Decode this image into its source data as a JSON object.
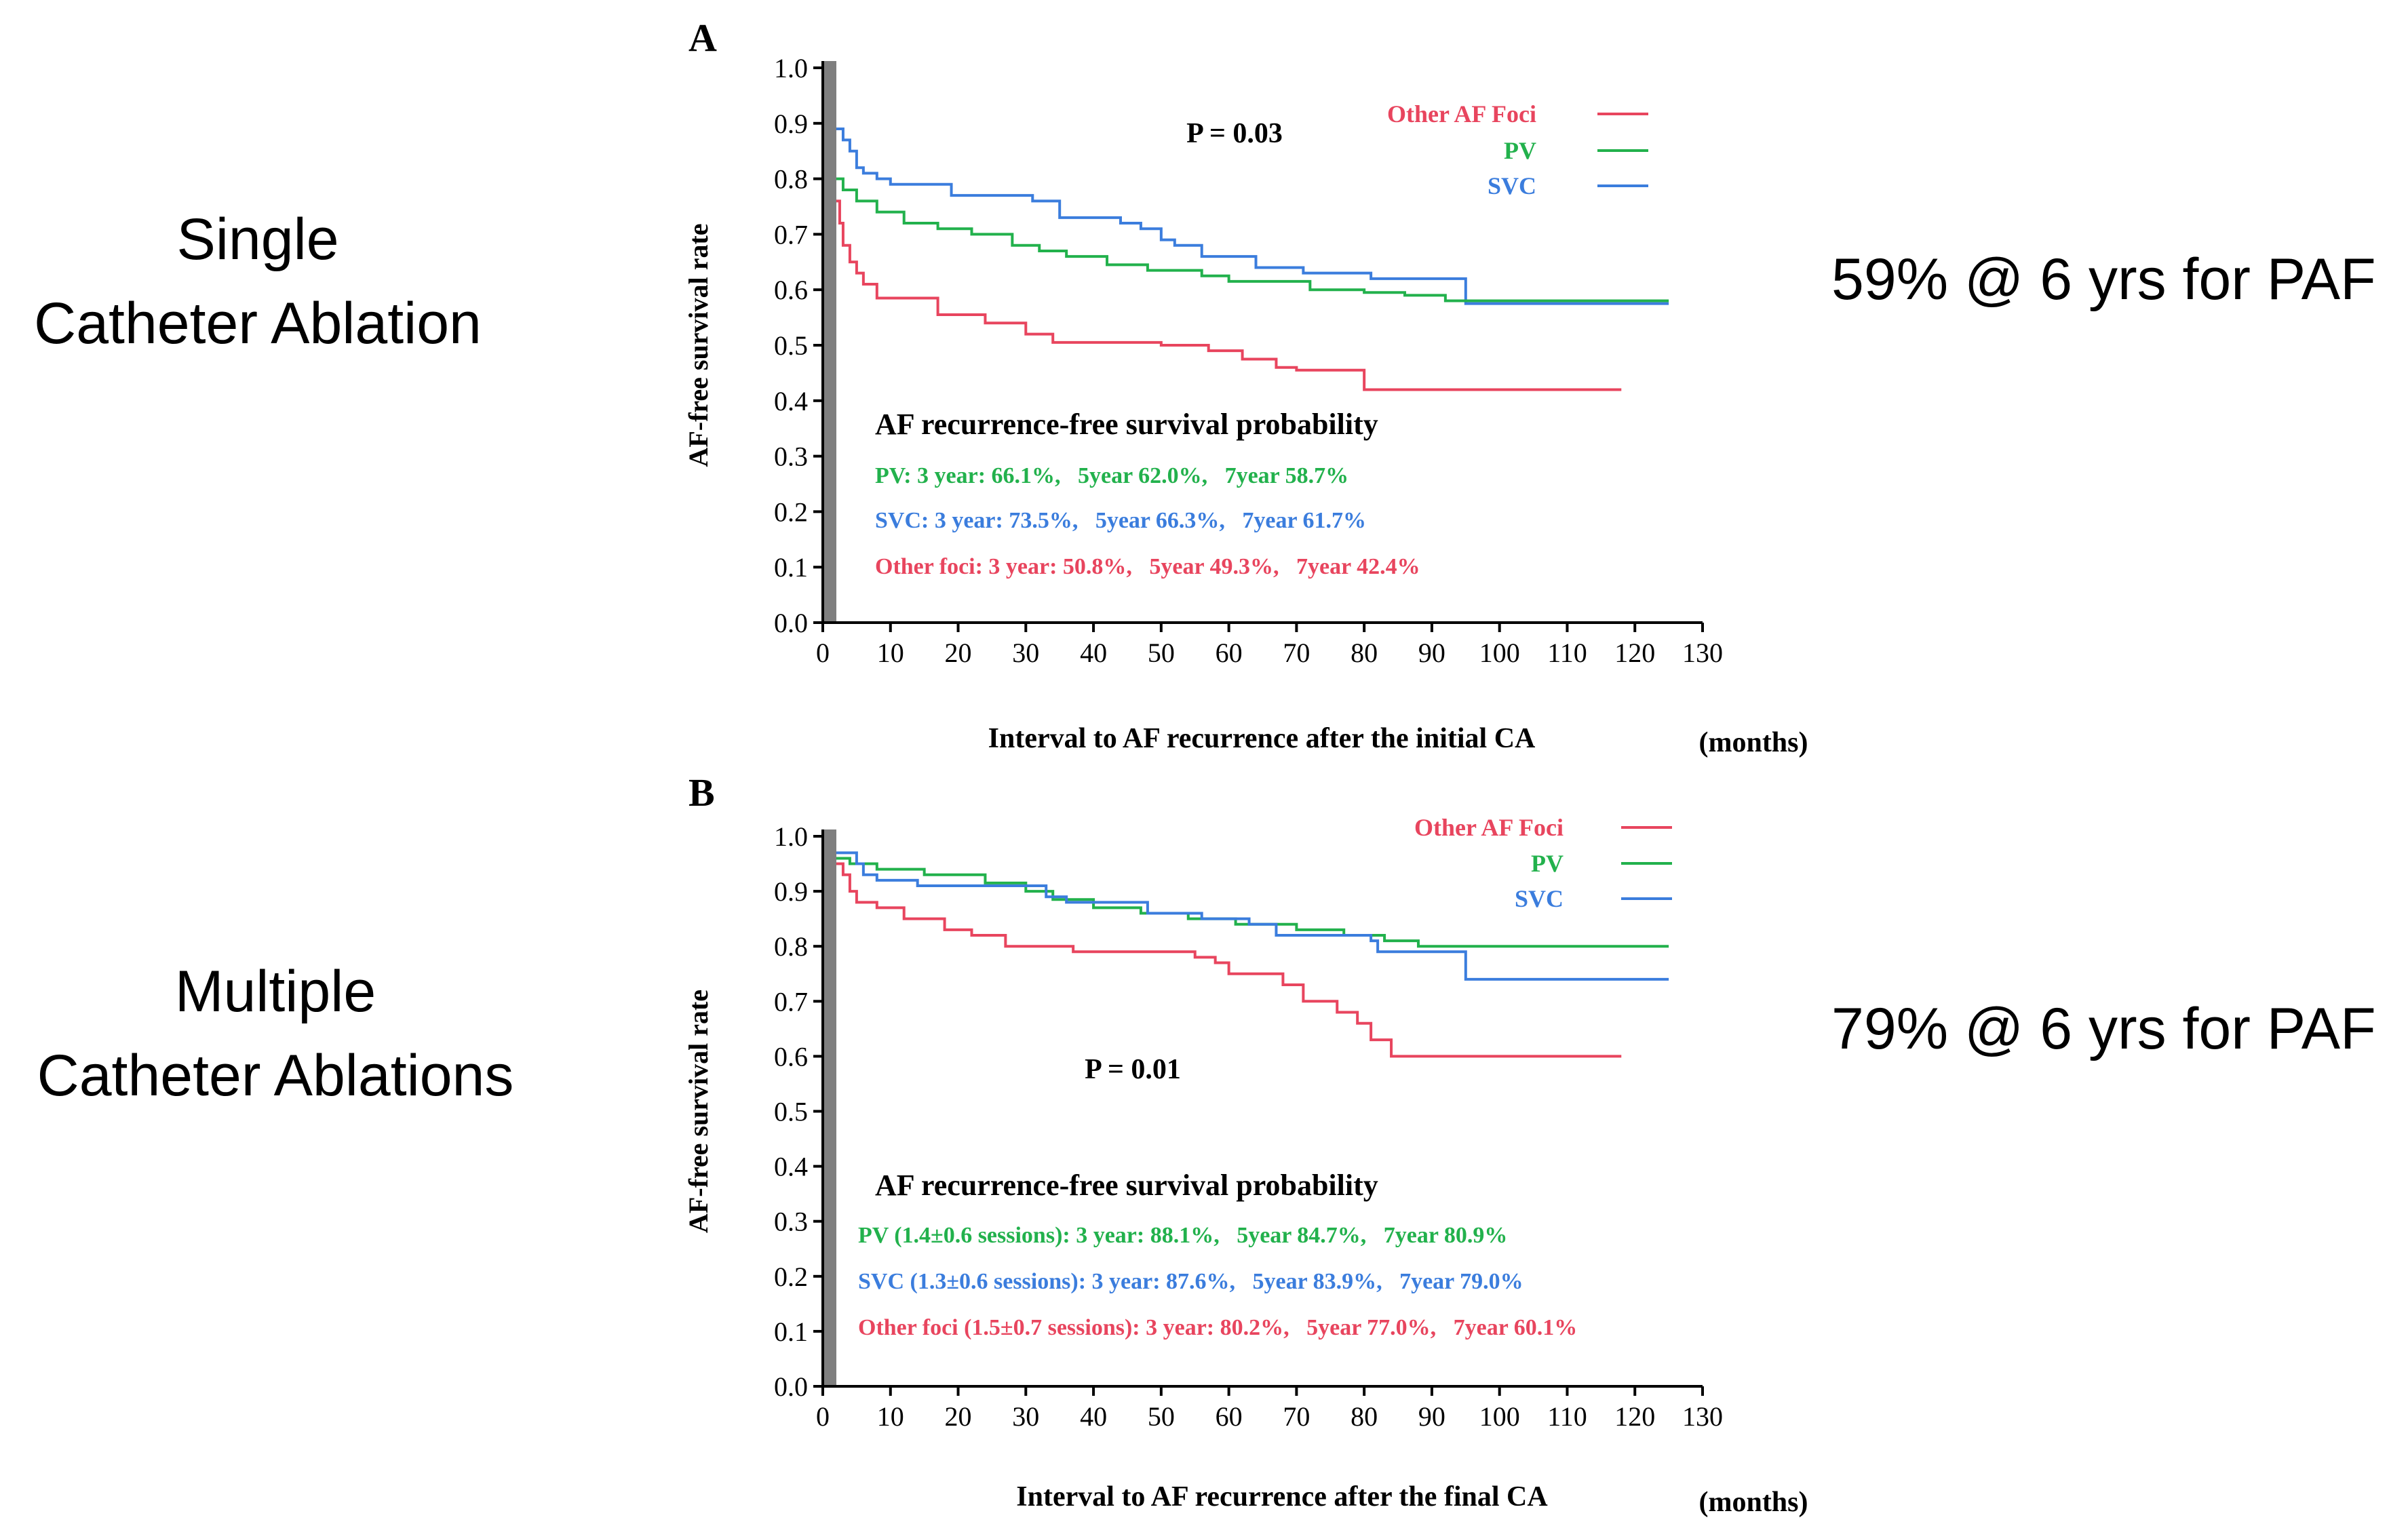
{
  "side_labels": {
    "single": [
      "Single",
      "Catheter Ablation"
    ],
    "multiple": [
      "Multiple",
      "Catheter Ablations"
    ]
  },
  "results": {
    "single": "59% @ 6 yrs for PAF",
    "multiple": "79% @ 6 yrs for PAF"
  },
  "colors": {
    "other": "#e8455e",
    "pv": "#22b14c",
    "svc": "#3b7ddd",
    "axis": "#000000",
    "bar": "#7f7f7f"
  },
  "chart_data": [
    {
      "type": "line",
      "panel_label": "A",
      "ylabel": "AF-free survival rate",
      "xlabel": "Interval to AF recurrence after the initial CA",
      "xunit": "(months)",
      "xlim": [
        0,
        130
      ],
      "ylim": [
        0.0,
        1.0
      ],
      "x_ticks": [
        0,
        10,
        20,
        30,
        40,
        50,
        60,
        70,
        80,
        90,
        100,
        110,
        120,
        130
      ],
      "y_ticks": [
        "0.0",
        "0.1",
        "0.2",
        "0.3",
        "0.4",
        "0.5",
        "0.6",
        "0.7",
        "0.8",
        "0.9",
        "1.0"
      ],
      "p_value": "P = 0.03",
      "legend": [
        "Other AF Foci",
        "PV",
        "SVC"
      ],
      "summary_title": "AF recurrence-free survival probability",
      "summary": [
        {
          "key": "pv",
          "text": "PV: 3 year: 66.1%,   5year 62.0%,   7year 58.7%"
        },
        {
          "key": "svc",
          "text": "SVC: 3 year: 73.5%,   5year 66.3%,   7year 61.7%"
        },
        {
          "key": "other",
          "text": "Other foci: 3 year: 50.8%,   5year 49.3%,   7year 42.4%"
        }
      ],
      "series": [
        {
          "key": "svc",
          "name": "SVC",
          "points": [
            [
              2,
              0.89
            ],
            [
              3,
              0.87
            ],
            [
              4,
              0.85
            ],
            [
              5,
              0.82
            ],
            [
              6,
              0.81
            ],
            [
              8,
              0.8
            ],
            [
              10,
              0.79
            ],
            [
              19,
              0.77
            ],
            [
              31,
              0.76
            ],
            [
              35,
              0.73
            ],
            [
              44,
              0.72
            ],
            [
              47,
              0.71
            ],
            [
              50,
              0.69
            ],
            [
              52,
              0.68
            ],
            [
              56,
              0.66
            ],
            [
              64,
              0.64
            ],
            [
              71,
              0.63
            ],
            [
              81,
              0.62
            ],
            [
              95,
              0.575
            ],
            [
              125,
              0.575
            ]
          ]
        },
        {
          "key": "pv",
          "name": "PV",
          "points": [
            [
              2,
              0.8
            ],
            [
              3,
              0.78
            ],
            [
              5,
              0.76
            ],
            [
              8,
              0.74
            ],
            [
              12,
              0.72
            ],
            [
              17,
              0.71
            ],
            [
              22,
              0.7
            ],
            [
              28,
              0.68
            ],
            [
              32,
              0.67
            ],
            [
              36,
              0.66
            ],
            [
              42,
              0.645
            ],
            [
              48,
              0.635
            ],
            [
              56,
              0.625
            ],
            [
              60,
              0.615
            ],
            [
              72,
              0.6
            ],
            [
              80,
              0.595
            ],
            [
              86,
              0.59
            ],
            [
              92,
              0.58
            ],
            [
              125,
              0.58
            ]
          ]
        },
        {
          "key": "other",
          "name": "Other AF Foci",
          "points": [
            [
              2,
              0.76
            ],
            [
              2.5,
              0.72
            ],
            [
              3,
              0.68
            ],
            [
              4,
              0.65
            ],
            [
              5,
              0.63
            ],
            [
              6,
              0.61
            ],
            [
              8,
              0.585
            ],
            [
              17,
              0.555
            ],
            [
              24,
              0.54
            ],
            [
              30,
              0.52
            ],
            [
              34,
              0.505
            ],
            [
              50,
              0.5
            ],
            [
              57,
              0.49
            ],
            [
              62,
              0.475
            ],
            [
              67,
              0.46
            ],
            [
              70,
              0.455
            ],
            [
              80,
              0.42
            ],
            [
              118,
              0.42
            ]
          ]
        }
      ]
    },
    {
      "type": "line",
      "panel_label": "B",
      "ylabel": "AF-free survival rate",
      "xlabel": "Interval to AF recurrence after the final CA",
      "xunit": "(months)",
      "xlim": [
        0,
        130
      ],
      "ylim": [
        0.0,
        1.0
      ],
      "x_ticks": [
        0,
        10,
        20,
        30,
        40,
        50,
        60,
        70,
        80,
        90,
        100,
        110,
        120,
        130
      ],
      "y_ticks": [
        "0.0",
        "0.1",
        "0.2",
        "0.3",
        "0.4",
        "0.5",
        "0.6",
        "0.7",
        "0.8",
        "0.9",
        "1.0"
      ],
      "p_value": "P = 0.01",
      "legend": [
        "Other AF Foci",
        "PV",
        "SVC"
      ],
      "summary_title": "AF recurrence-free survival probability",
      "summary": [
        {
          "key": "pv",
          "text": "PV (1.4±0.6 sessions): 3 year: 88.1%,   5year 84.7%,   7year 80.9%"
        },
        {
          "key": "svc",
          "text": "SVC (1.3±0.6 sessions): 3 year: 87.6%,   5year 83.9%,   7year 79.0%"
        },
        {
          "key": "other",
          "text": "Other foci (1.5±0.7 sessions): 3 year: 80.2%,   5year 77.0%,   7year 60.1%"
        }
      ],
      "series": [
        {
          "key": "pv",
          "name": "PV",
          "points": [
            [
              2,
              0.96
            ],
            [
              4,
              0.95
            ],
            [
              8,
              0.94
            ],
            [
              15,
              0.93
            ],
            [
              24,
              0.915
            ],
            [
              30,
              0.9
            ],
            [
              34,
              0.885
            ],
            [
              40,
              0.87
            ],
            [
              47,
              0.86
            ],
            [
              54,
              0.85
            ],
            [
              61,
              0.84
            ],
            [
              70,
              0.83
            ],
            [
              77,
              0.82
            ],
            [
              83,
              0.81
            ],
            [
              88,
              0.8
            ],
            [
              125,
              0.8
            ]
          ]
        },
        {
          "key": "svc",
          "name": "SVC",
          "points": [
            [
              2,
              0.97
            ],
            [
              5,
              0.95
            ],
            [
              6,
              0.93
            ],
            [
              8,
              0.92
            ],
            [
              14,
              0.91
            ],
            [
              28,
              0.91
            ],
            [
              33,
              0.89
            ],
            [
              36,
              0.88
            ],
            [
              48,
              0.86
            ],
            [
              56,
              0.85
            ],
            [
              63,
              0.84
            ],
            [
              67,
              0.82
            ],
            [
              81,
              0.81
            ],
            [
              82,
              0.79
            ],
            [
              94,
              0.79
            ],
            [
              95,
              0.74
            ],
            [
              125,
              0.74
            ]
          ]
        },
        {
          "key": "other",
          "name": "Other AF Foci",
          "points": [
            [
              2,
              0.95
            ],
            [
              3,
              0.93
            ],
            [
              4,
              0.9
            ],
            [
              5,
              0.88
            ],
            [
              8,
              0.87
            ],
            [
              12,
              0.85
            ],
            [
              18,
              0.83
            ],
            [
              22,
              0.82
            ],
            [
              27,
              0.8
            ],
            [
              37,
              0.79
            ],
            [
              55,
              0.78
            ],
            [
              58,
              0.77
            ],
            [
              60,
              0.75
            ],
            [
              68,
              0.73
            ],
            [
              71,
              0.7
            ],
            [
              76,
              0.68
            ],
            [
              79,
              0.66
            ],
            [
              81,
              0.63
            ],
            [
              84,
              0.6
            ],
            [
              118,
              0.6
            ]
          ]
        }
      ]
    }
  ]
}
